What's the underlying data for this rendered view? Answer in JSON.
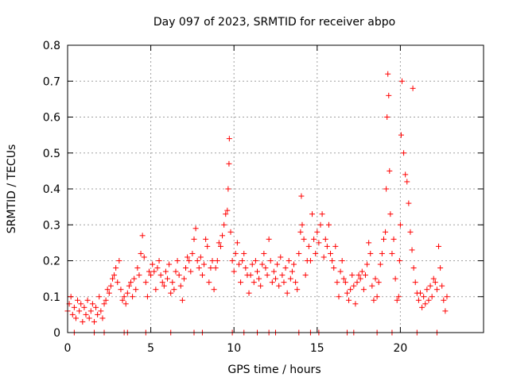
{
  "chart_data": {
    "type": "scatter",
    "title": "Day 097 of 2023, SRMTID for receiver abpo",
    "xlabel": "GPS time / hours",
    "ylabel": "SRMTID / TECUs",
    "xlim": [
      0,
      25
    ],
    "ylim": [
      0,
      0.8
    ],
    "xticks": [
      0,
      5,
      10,
      15,
      20
    ],
    "xtick_labels": [
      "0",
      "5",
      "10",
      "15",
      "20"
    ],
    "yticks": [
      0,
      0.1,
      0.2,
      0.3,
      0.4,
      0.5,
      0.6,
      0.7,
      0.8
    ],
    "ytick_labels": [
      "0",
      "0.1",
      "0.2",
      "0.3",
      "0.4",
      "0.5",
      "0.6",
      "0.7",
      "0.8"
    ],
    "grid": true,
    "marker": "+",
    "series": [
      {
        "name": "SRMTID",
        "color": "#ff0000",
        "points": [
          [
            0.0,
            0.06
          ],
          [
            0.1,
            0.08
          ],
          [
            0.2,
            0.1
          ],
          [
            0.3,
            0.05
          ],
          [
            0.4,
            0.07
          ],
          [
            0.5,
            0.04
          ],
          [
            0.6,
            0.09
          ],
          [
            0.7,
            0.06
          ],
          [
            0.8,
            0.08
          ],
          [
            0.9,
            0.03
          ],
          [
            1.0,
            0.07
          ],
          [
            1.1,
            0.05
          ],
          [
            1.2,
            0.09
          ],
          [
            1.3,
            0.04
          ],
          [
            1.4,
            0.06
          ],
          [
            1.5,
            0.08
          ],
          [
            1.6,
            0.03
          ],
          [
            1.7,
            0.07
          ],
          [
            1.8,
            0.05
          ],
          [
            1.9,
            0.1
          ],
          [
            2.0,
            0.06
          ],
          [
            2.1,
            0.04
          ],
          [
            2.2,
            0.08
          ],
          [
            2.3,
            0.09
          ],
          [
            2.4,
            0.12
          ],
          [
            2.5,
            0.11
          ],
          [
            2.6,
            0.13
          ],
          [
            2.7,
            0.15
          ],
          [
            2.8,
            0.16
          ],
          [
            2.9,
            0.18
          ],
          [
            3.0,
            0.14
          ],
          [
            3.1,
            0.2
          ],
          [
            3.2,
            0.12
          ],
          [
            3.3,
            0.09
          ],
          [
            3.4,
            0.1
          ],
          [
            3.5,
            0.08
          ],
          [
            3.6,
            0.11
          ],
          [
            3.7,
            0.13
          ],
          [
            3.8,
            0.14
          ],
          [
            3.9,
            0.1
          ],
          [
            4.0,
            0.15
          ],
          [
            4.1,
            0.12
          ],
          [
            4.2,
            0.18
          ],
          [
            4.3,
            0.16
          ],
          [
            4.4,
            0.22
          ],
          [
            4.5,
            0.27
          ],
          [
            4.6,
            0.21
          ],
          [
            4.7,
            0.14
          ],
          [
            4.8,
            0.1
          ],
          [
            4.9,
            0.17
          ],
          [
            5.0,
            0.16
          ],
          [
            5.1,
            0.19
          ],
          [
            5.2,
            0.17
          ],
          [
            5.3,
            0.12
          ],
          [
            5.4,
            0.18
          ],
          [
            5.5,
            0.2
          ],
          [
            5.6,
            0.16
          ],
          [
            5.7,
            0.14
          ],
          [
            5.8,
            0.13
          ],
          [
            5.9,
            0.17
          ],
          [
            6.0,
            0.15
          ],
          [
            6.1,
            0.19
          ],
          [
            6.2,
            0.11
          ],
          [
            6.3,
            0.14
          ],
          [
            6.4,
            0.12
          ],
          [
            6.5,
            0.17
          ],
          [
            6.6,
            0.2
          ],
          [
            6.7,
            0.16
          ],
          [
            6.8,
            0.13
          ],
          [
            6.9,
            0.09
          ],
          [
            7.0,
            0.15
          ],
          [
            7.1,
            0.18
          ],
          [
            7.2,
            0.21
          ],
          [
            7.3,
            0.2
          ],
          [
            7.4,
            0.17
          ],
          [
            7.5,
            0.22
          ],
          [
            7.6,
            0.26
          ],
          [
            7.7,
            0.29
          ],
          [
            7.8,
            0.2
          ],
          [
            7.9,
            0.18
          ],
          [
            8.0,
            0.21
          ],
          [
            8.1,
            0.16
          ],
          [
            8.2,
            0.19
          ],
          [
            8.3,
            0.26
          ],
          [
            8.4,
            0.24
          ],
          [
            8.5,
            0.14
          ],
          [
            8.6,
            0.18
          ],
          [
            8.7,
            0.2
          ],
          [
            8.8,
            0.12
          ],
          [
            8.9,
            0.18
          ],
          [
            9.0,
            0.2
          ],
          [
            9.1,
            0.25
          ],
          [
            9.2,
            0.24
          ],
          [
            9.3,
            0.27
          ],
          [
            9.4,
            0.3
          ],
          [
            9.5,
            0.33
          ],
          [
            9.6,
            0.34
          ],
          [
            9.65,
            0.4
          ],
          [
            9.7,
            0.47
          ],
          [
            9.72,
            0.54
          ],
          [
            9.8,
            0.28
          ],
          [
            9.9,
            0.2
          ],
          [
            10.0,
            0.17
          ],
          [
            10.1,
            0.22
          ],
          [
            10.2,
            0.25
          ],
          [
            10.3,
            0.19
          ],
          [
            10.4,
            0.14
          ],
          [
            10.5,
            0.2
          ],
          [
            10.6,
            0.22
          ],
          [
            10.7,
            0.18
          ],
          [
            10.8,
            0.16
          ],
          [
            10.9,
            0.11
          ],
          [
            11.0,
            0.16
          ],
          [
            11.1,
            0.19
          ],
          [
            11.2,
            0.14
          ],
          [
            11.3,
            0.2
          ],
          [
            11.4,
            0.17
          ],
          [
            11.5,
            0.15
          ],
          [
            11.6,
            0.13
          ],
          [
            11.7,
            0.19
          ],
          [
            11.8,
            0.22
          ],
          [
            11.9,
            0.18
          ],
          [
            12.0,
            0.16
          ],
          [
            12.1,
            0.26
          ],
          [
            12.2,
            0.2
          ],
          [
            12.3,
            0.14
          ],
          [
            12.4,
            0.17
          ],
          [
            12.5,
            0.15
          ],
          [
            12.6,
            0.19
          ],
          [
            12.7,
            0.13
          ],
          [
            12.8,
            0.21
          ],
          [
            12.9,
            0.16
          ],
          [
            13.0,
            0.14
          ],
          [
            13.1,
            0.18
          ],
          [
            13.2,
            0.11
          ],
          [
            13.3,
            0.2
          ],
          [
            13.4,
            0.15
          ],
          [
            13.5,
            0.17
          ],
          [
            13.6,
            0.19
          ],
          [
            13.7,
            0.14
          ],
          [
            13.8,
            0.12
          ],
          [
            13.9,
            0.22
          ],
          [
            14.0,
            0.28
          ],
          [
            14.05,
            0.38
          ],
          [
            14.1,
            0.3
          ],
          [
            14.2,
            0.26
          ],
          [
            14.3,
            0.16
          ],
          [
            14.4,
            0.2
          ],
          [
            14.5,
            0.24
          ],
          [
            14.6,
            0.2
          ],
          [
            14.7,
            0.33
          ],
          [
            14.8,
            0.26
          ],
          [
            14.9,
            0.22
          ],
          [
            15.0,
            0.28
          ],
          [
            15.1,
            0.25
          ],
          [
            15.2,
            0.3
          ],
          [
            15.3,
            0.33
          ],
          [
            15.4,
            0.21
          ],
          [
            15.5,
            0.26
          ],
          [
            15.6,
            0.24
          ],
          [
            15.7,
            0.3
          ],
          [
            15.8,
            0.22
          ],
          [
            15.9,
            0.2
          ],
          [
            16.0,
            0.18
          ],
          [
            16.1,
            0.24
          ],
          [
            16.2,
            0.14
          ],
          [
            16.3,
            0.1
          ],
          [
            16.4,
            0.17
          ],
          [
            16.5,
            0.2
          ],
          [
            16.6,
            0.15
          ],
          [
            16.7,
            0.14
          ],
          [
            16.8,
            0.11
          ],
          [
            16.9,
            0.09
          ],
          [
            17.0,
            0.12
          ],
          [
            17.1,
            0.16
          ],
          [
            17.2,
            0.13
          ],
          [
            17.3,
            0.08
          ],
          [
            17.4,
            0.14
          ],
          [
            17.5,
            0.16
          ],
          [
            17.6,
            0.15
          ],
          [
            17.7,
            0.17
          ],
          [
            17.8,
            0.12
          ],
          [
            17.9,
            0.16
          ],
          [
            18.0,
            0.19
          ],
          [
            18.1,
            0.25
          ],
          [
            18.2,
            0.22
          ],
          [
            18.3,
            0.13
          ],
          [
            18.4,
            0.09
          ],
          [
            18.5,
            0.15
          ],
          [
            18.6,
            0.1
          ],
          [
            18.7,
            0.14
          ],
          [
            18.8,
            0.19
          ],
          [
            18.9,
            0.22
          ],
          [
            19.0,
            0.26
          ],
          [
            19.1,
            0.28
          ],
          [
            19.15,
            0.4
          ],
          [
            19.2,
            0.6
          ],
          [
            19.25,
            0.72
          ],
          [
            19.3,
            0.66
          ],
          [
            19.35,
            0.45
          ],
          [
            19.4,
            0.33
          ],
          [
            19.5,
            0.22
          ],
          [
            19.6,
            0.26
          ],
          [
            19.7,
            0.15
          ],
          [
            19.8,
            0.09
          ],
          [
            19.9,
            0.1
          ],
          [
            19.95,
            0.2
          ],
          [
            20.0,
            0.3
          ],
          [
            20.05,
            0.55
          ],
          [
            20.1,
            0.7
          ],
          [
            20.2,
            0.5
          ],
          [
            20.3,
            0.44
          ],
          [
            20.4,
            0.42
          ],
          [
            20.5,
            0.36
          ],
          [
            20.6,
            0.28
          ],
          [
            20.7,
            0.23
          ],
          [
            20.75,
            0.68
          ],
          [
            20.8,
            0.18
          ],
          [
            20.9,
            0.14
          ],
          [
            21.0,
            0.11
          ],
          [
            21.1,
            0.09
          ],
          [
            21.2,
            0.11
          ],
          [
            21.3,
            0.07
          ],
          [
            21.4,
            0.1
          ],
          [
            21.5,
            0.08
          ],
          [
            21.6,
            0.12
          ],
          [
            21.7,
            0.09
          ],
          [
            21.8,
            0.13
          ],
          [
            21.9,
            0.1
          ],
          [
            22.0,
            0.15
          ],
          [
            22.1,
            0.14
          ],
          [
            22.2,
            0.12
          ],
          [
            22.3,
            0.24
          ],
          [
            22.4,
            0.18
          ],
          [
            22.5,
            0.13
          ],
          [
            22.6,
            0.09
          ],
          [
            22.7,
            0.06
          ],
          [
            22.8,
            0.1
          ],
          [
            0.4,
            0.0
          ],
          [
            1.6,
            0.0
          ],
          [
            2.2,
            0.0
          ],
          [
            3.4,
            0.0
          ],
          [
            3.6,
            0.0
          ],
          [
            4.7,
            0.0
          ],
          [
            6.2,
            0.0
          ],
          [
            7.6,
            0.0
          ],
          [
            8.1,
            0.0
          ],
          [
            9.9,
            0.0
          ],
          [
            10.6,
            0.0
          ],
          [
            11.4,
            0.0
          ],
          [
            12.1,
            0.0
          ],
          [
            12.5,
            0.0
          ],
          [
            13.9,
            0.0
          ],
          [
            14.6,
            0.0
          ],
          [
            15.1,
            0.0
          ],
          [
            16.8,
            0.0
          ],
          [
            17.2,
            0.0
          ],
          [
            18.6,
            0.0
          ],
          [
            19.5,
            0.0
          ],
          [
            21.0,
            0.0
          ],
          [
            22.2,
            0.0
          ]
        ]
      }
    ]
  }
}
